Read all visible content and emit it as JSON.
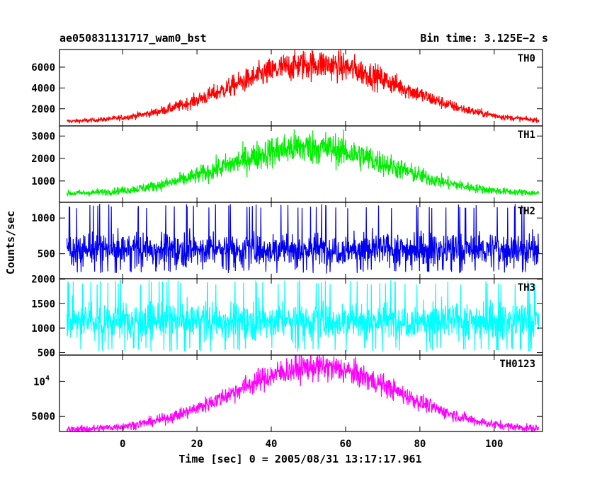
{
  "header": {
    "title": "ae050831131717_wam0_bst",
    "bin_time": "Bin time: 3.125E−2 s"
  },
  "chart_data": {
    "type": "line",
    "xlabel": "Time [sec] 0 = 2005/08/31 13:17:17.961",
    "ylabel": "Counts/sec",
    "xlim": [
      -17,
      113
    ],
    "x_ticks": [
      0,
      20,
      40,
      60,
      80,
      100
    ],
    "x_range": [
      -15,
      112
    ],
    "panels": [
      {
        "name": "TH0",
        "color": "#ff0000",
        "ylim": [
          350,
          7700
        ],
        "y_ticks": [
          {
            "v": 2000,
            "label": "2000"
          },
          {
            "v": 4000,
            "label": "4000"
          },
          {
            "v": 6000,
            "label": "6000"
          }
        ],
        "shape": "bell",
        "baseline": 720,
        "peak": 6300,
        "center": 52,
        "sigma": 23,
        "noise_frac": 0.17
      },
      {
        "name": "TH1",
        "color": "#00ee00",
        "ylim": [
          50,
          3450
        ],
        "y_ticks": [
          {
            "v": 1000,
            "label": "1000"
          },
          {
            "v": 2000,
            "label": "2000"
          },
          {
            "v": 3000,
            "label": "3000"
          }
        ],
        "shape": "bell",
        "baseline": 420,
        "peak": 2500,
        "center": 50,
        "sigma": 22,
        "noise_frac": 0.22
      },
      {
        "name": "TH2",
        "color": "#0000ee",
        "ylim": [
          150,
          1220
        ],
        "y_ticks": [
          {
            "v": 500,
            "label": "500"
          },
          {
            "v": 1000,
            "label": "1000"
          }
        ],
        "shape": "flat",
        "level": 560,
        "noise_abs": 160,
        "spike_max": 1200,
        "spike_min": 230
      },
      {
        "name": "TH3",
        "color": "#00ffff",
        "ylim": [
          450,
          2010
        ],
        "y_ticks": [
          {
            "v": 500,
            "label": "500"
          },
          {
            "v": 1000,
            "label": "1000"
          },
          {
            "v": 1500,
            "label": "1500"
          },
          {
            "v": 2000,
            "label": "2000"
          }
        ],
        "shape": "flat",
        "level": 1150,
        "noise_abs": 260,
        "spike_max": 1990,
        "spike_min": 520
      },
      {
        "name": "TH0123",
        "color": "#ff00ff",
        "ylim": [
          2800,
          13800
        ],
        "y_ticks": [
          {
            "v": 5000,
            "label": "5000"
          },
          {
            "v": 10000,
            "label": "10",
            "exp": "4"
          }
        ],
        "shape": "bell",
        "baseline": 3000,
        "peak": 12100,
        "center": 52,
        "sigma": 22,
        "noise_frac": 0.12
      }
    ]
  }
}
